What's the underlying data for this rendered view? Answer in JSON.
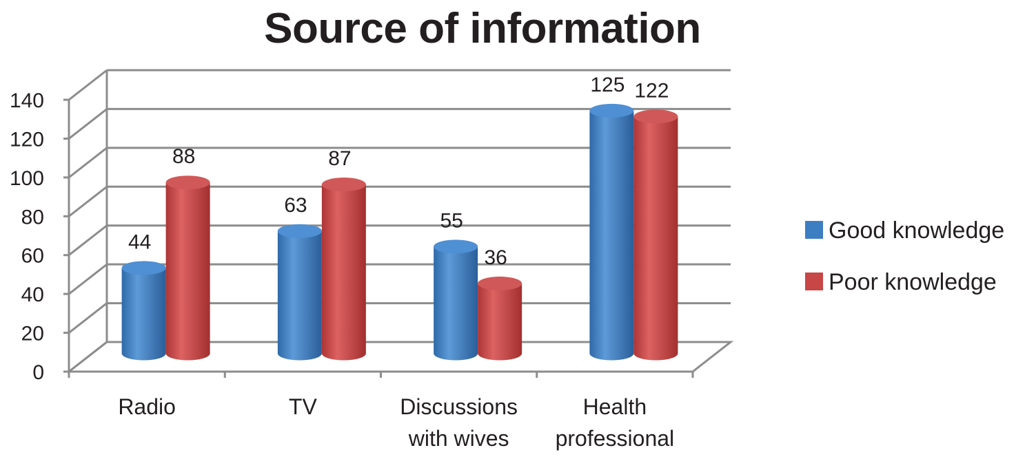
{
  "chart_data": {
    "type": "bar",
    "title": "Source of information",
    "categories": [
      [
        "Radio"
      ],
      [
        "TV"
      ],
      [
        "Discussions",
        "with wives"
      ],
      [
        "Health",
        "professional"
      ]
    ],
    "series": [
      {
        "name": "Good knowledge",
        "values": [
          44,
          63,
          55,
          125
        ],
        "color": "#3d7ec3"
      },
      {
        "name": "Poor knowledge",
        "values": [
          88,
          87,
          36,
          122
        ],
        "color": "#c74646"
      }
    ],
    "ylim": [
      0,
      140
    ],
    "yticks": [
      0,
      20,
      40,
      60,
      80,
      100,
      120,
      140
    ],
    "xlabel": "",
    "ylabel": "",
    "grid": true,
    "legend": "right",
    "style": "3d-cylinder"
  }
}
